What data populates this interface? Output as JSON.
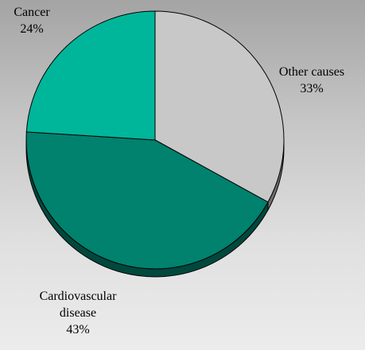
{
  "chart_data": {
    "type": "pie",
    "title": "",
    "slices": [
      {
        "label": "Other causes",
        "value": 33,
        "value_label": "33%",
        "color": "#c8c8c8"
      },
      {
        "label": "Cardiovascular disease",
        "value": 43,
        "value_label": "43%",
        "color": "#00826e"
      },
      {
        "label": "Cancer",
        "value": 24,
        "value_label": "24%",
        "color": "#00b69a"
      }
    ],
    "style": "3d-pie",
    "legend": "none"
  },
  "labels": {
    "other_name": "Other causes",
    "other_pct": "33%",
    "cardio_name_line1": "Cardiovascular",
    "cardio_name_line2": "disease",
    "cardio_pct": "43%",
    "cancer_name": "Cancer",
    "cancer_pct": "24%"
  }
}
